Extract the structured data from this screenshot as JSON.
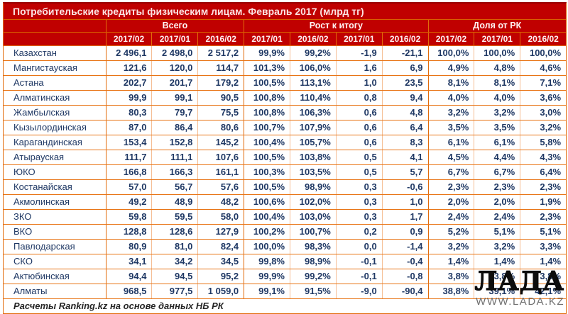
{
  "title": "Потребительские кредиты физическим лицам. Февраль 2017 (млрд тг)",
  "colors": {
    "header_red": "#C00000",
    "border_orange": "#E26B0A",
    "border_light": "#F5BE94",
    "text_navy": "#1F3864",
    "logo_black": "#0d0d0d",
    "logo_gray": "#6F6F6F"
  },
  "chart_data": {
    "type": "table",
    "title": "Потребительские кредиты физическим лицам. Февраль 2017 (млрд тг)",
    "group_headers": [
      {
        "label": "Всего",
        "span": 3
      },
      {
        "label": "Рост к итогу",
        "span": 4
      },
      {
        "label": "Доля от РК",
        "span": 3
      }
    ],
    "sub_headers": [
      "2017/02",
      "2017/01",
      "2016/02",
      "2017/01",
      "2016/02",
      "2017/01",
      "2016/02",
      "2017/02",
      "2017/01",
      "2016/02"
    ],
    "group_start_columns": [
      0,
      3,
      7
    ],
    "rows": [
      {
        "region": "Казахстан",
        "values": [
          "2 496,1",
          "2 498,0",
          "2 517,2",
          "99,9%",
          "99,2%",
          "-1,9",
          "-21,1",
          "100,0%",
          "100,0%",
          "100,0%"
        ]
      },
      {
        "region": "Мангистауская",
        "values": [
          "121,6",
          "120,0",
          "114,7",
          "101,3%",
          "106,0%",
          "1,6",
          "6,9",
          "4,9%",
          "4,8%",
          "4,6%"
        ]
      },
      {
        "region": "Астана",
        "values": [
          "202,7",
          "201,7",
          "179,2",
          "100,5%",
          "113,1%",
          "1,0",
          "23,5",
          "8,1%",
          "8,1%",
          "7,1%"
        ]
      },
      {
        "region": "Алматинская",
        "values": [
          "99,9",
          "99,1",
          "90,5",
          "100,8%",
          "110,4%",
          "0,8",
          "9,4",
          "4,0%",
          "4,0%",
          "3,6%"
        ]
      },
      {
        "region": "Жамбылская",
        "values": [
          "80,3",
          "79,7",
          "75,5",
          "100,8%",
          "106,3%",
          "0,6",
          "4,8",
          "3,2%",
          "3,2%",
          "3,0%"
        ]
      },
      {
        "region": "Кызылординская",
        "values": [
          "87,0",
          "86,4",
          "80,6",
          "100,7%",
          "107,9%",
          "0,6",
          "6,4",
          "3,5%",
          "3,5%",
          "3,2%"
        ]
      },
      {
        "region": "Карагандинская",
        "values": [
          "153,4",
          "152,8",
          "145,2",
          "100,4%",
          "105,7%",
          "0,6",
          "8,3",
          "6,1%",
          "6,1%",
          "5,8%"
        ]
      },
      {
        "region": "Атырауская",
        "values": [
          "111,7",
          "111,1",
          "107,6",
          "100,5%",
          "103,8%",
          "0,5",
          "4,1",
          "4,5%",
          "4,4%",
          "4,3%"
        ]
      },
      {
        "region": "ЮКО",
        "values": [
          "166,8",
          "166,3",
          "161,1",
          "100,3%",
          "103,5%",
          "0,5",
          "5,7",
          "6,7%",
          "6,7%",
          "6,4%"
        ]
      },
      {
        "region": "Костанайская",
        "values": [
          "57,0",
          "56,7",
          "57,6",
          "100,5%",
          "98,9%",
          "0,3",
          "-0,6",
          "2,3%",
          "2,3%",
          "2,3%"
        ]
      },
      {
        "region": "Акмолинская",
        "values": [
          "49,2",
          "48,9",
          "48,2",
          "100,6%",
          "102,0%",
          "0,3",
          "1,0",
          "2,0%",
          "2,0%",
          "1,9%"
        ]
      },
      {
        "region": "ЗКО",
        "values": [
          "59,8",
          "59,5",
          "58,0",
          "100,4%",
          "103,0%",
          "0,3",
          "1,7",
          "2,4%",
          "2,4%",
          "2,3%"
        ]
      },
      {
        "region": "ВКО",
        "values": [
          "128,8",
          "128,6",
          "127,9",
          "100,2%",
          "100,7%",
          "0,2",
          "0,9",
          "5,2%",
          "5,1%",
          "5,1%"
        ]
      },
      {
        "region": "Павлодарская",
        "values": [
          "80,9",
          "81,0",
          "82,4",
          "100,0%",
          "98,3%",
          "0,0",
          "-1,4",
          "3,2%",
          "3,2%",
          "3,3%"
        ]
      },
      {
        "region": "СКО",
        "values": [
          "34,1",
          "34,2",
          "34,5",
          "99,8%",
          "98,9%",
          "-0,1",
          "-0,4",
          "1,4%",
          "1,4%",
          "1,4%"
        ]
      },
      {
        "region": "Актюбинская",
        "values": [
          "94,4",
          "94,5",
          "95,2",
          "99,9%",
          "99,2%",
          "-0,1",
          "-0,8",
          "3,8%",
          "3,8%",
          "3,8%"
        ]
      },
      {
        "region": "Алматы",
        "values": [
          "968,5",
          "977,5",
          "1 059,0",
          "99,1%",
          "91,5%",
          "-9,0",
          "-90,4",
          "38,8%",
          "39,1%",
          "42,1%"
        ]
      }
    ]
  },
  "footer": {
    "note": "Расчеты Ranking.kz на основе данных НБ РК"
  },
  "logo": {
    "name": "ЛАДА",
    "url_text": "WWW.LADA.KZ"
  }
}
